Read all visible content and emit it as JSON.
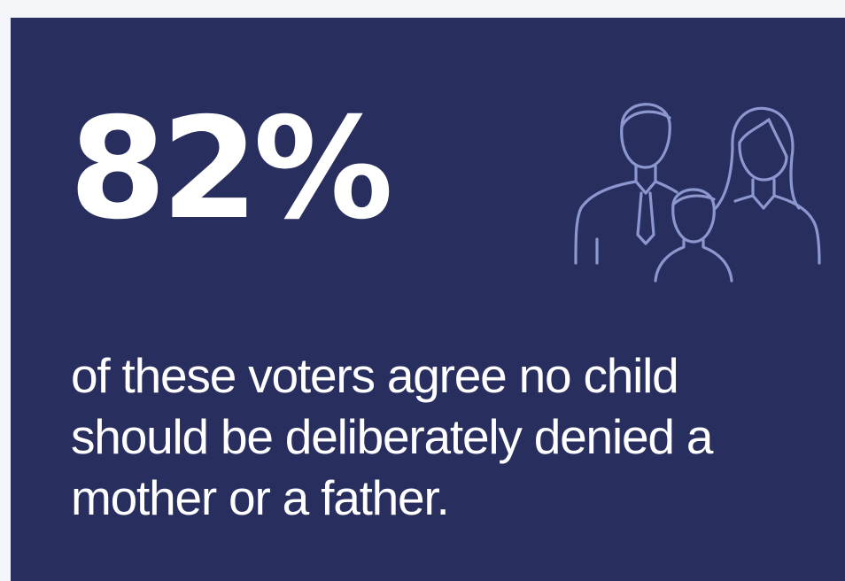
{
  "infographic": {
    "stat_value": "82%",
    "caption": "of these voters agree no child should be deliberately denied a mother or a father.",
    "icon": "family-icon",
    "colors": {
      "page_background": "#f3f5f9",
      "card_background": "#282f5e",
      "text": "#ffffff",
      "icon_stroke": "#8c97cf"
    }
  }
}
